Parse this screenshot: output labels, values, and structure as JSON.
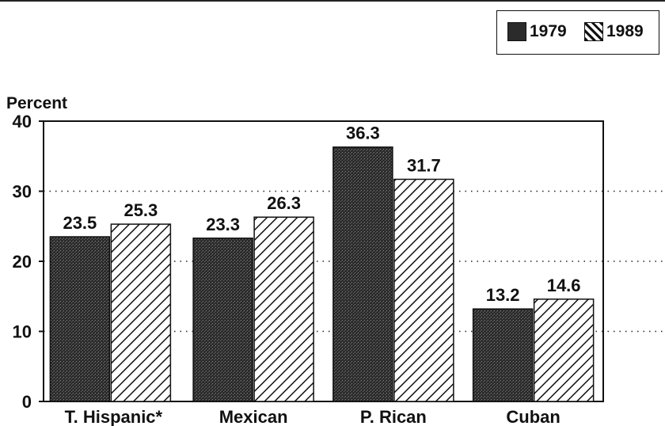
{
  "chart_data": {
    "type": "bar",
    "ylabel": "Percent",
    "xlabel": "",
    "title": "",
    "ylim": [
      0,
      40
    ],
    "yticks": [
      0,
      10,
      20,
      30,
      40
    ],
    "grid": "horizontal dotted",
    "legend_position": "top-right",
    "categories": [
      "T. Hispanic*",
      "Mexican",
      "P. Rican",
      "Cuban"
    ],
    "series": [
      {
        "name": "1979",
        "values": [
          23.5,
          23.3,
          36.3,
          13.2
        ],
        "value_labels": [
          "23.5",
          "23.3",
          "36.3",
          "13.2"
        ],
        "pattern": "dark-stipple",
        "color": "#3a3a3a"
      },
      {
        "name": "1989",
        "values": [
          25.3,
          26.3,
          31.7,
          14.6
        ],
        "value_labels": [
          "25.3",
          "26.3",
          "31.7",
          "14.6"
        ],
        "pattern": "diagonal-hatch",
        "color": "#111111"
      }
    ]
  }
}
